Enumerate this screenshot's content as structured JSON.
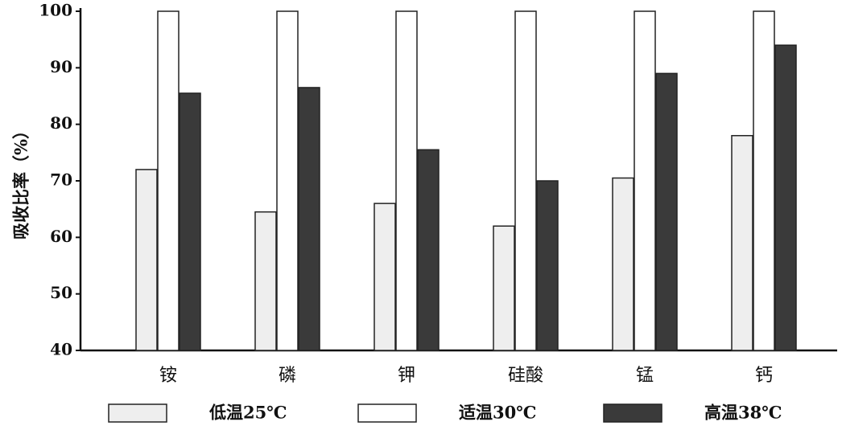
{
  "chart_data": {
    "type": "bar",
    "y_label": "吸收比率（%）",
    "categories": [
      "铵",
      "磷",
      "钾",
      "硅酸",
      "锰",
      "钙"
    ],
    "series": [
      {
        "name": "低温25℃",
        "color": "#eeeeee",
        "values": [
          72,
          64.5,
          66,
          62,
          70.5,
          78
        ]
      },
      {
        "name": "适温30℃",
        "color": "#ffffff",
        "values": [
          100,
          100,
          100,
          100,
          100,
          100
        ]
      },
      {
        "name": "高温38℃",
        "color": "#3a3a3a",
        "values": [
          85.5,
          86.5,
          75.5,
          70,
          89,
          94
        ]
      }
    ],
    "ylim": [
      40,
      100
    ],
    "yticks": [
      40,
      50,
      60,
      70,
      80,
      90,
      100
    ]
  }
}
